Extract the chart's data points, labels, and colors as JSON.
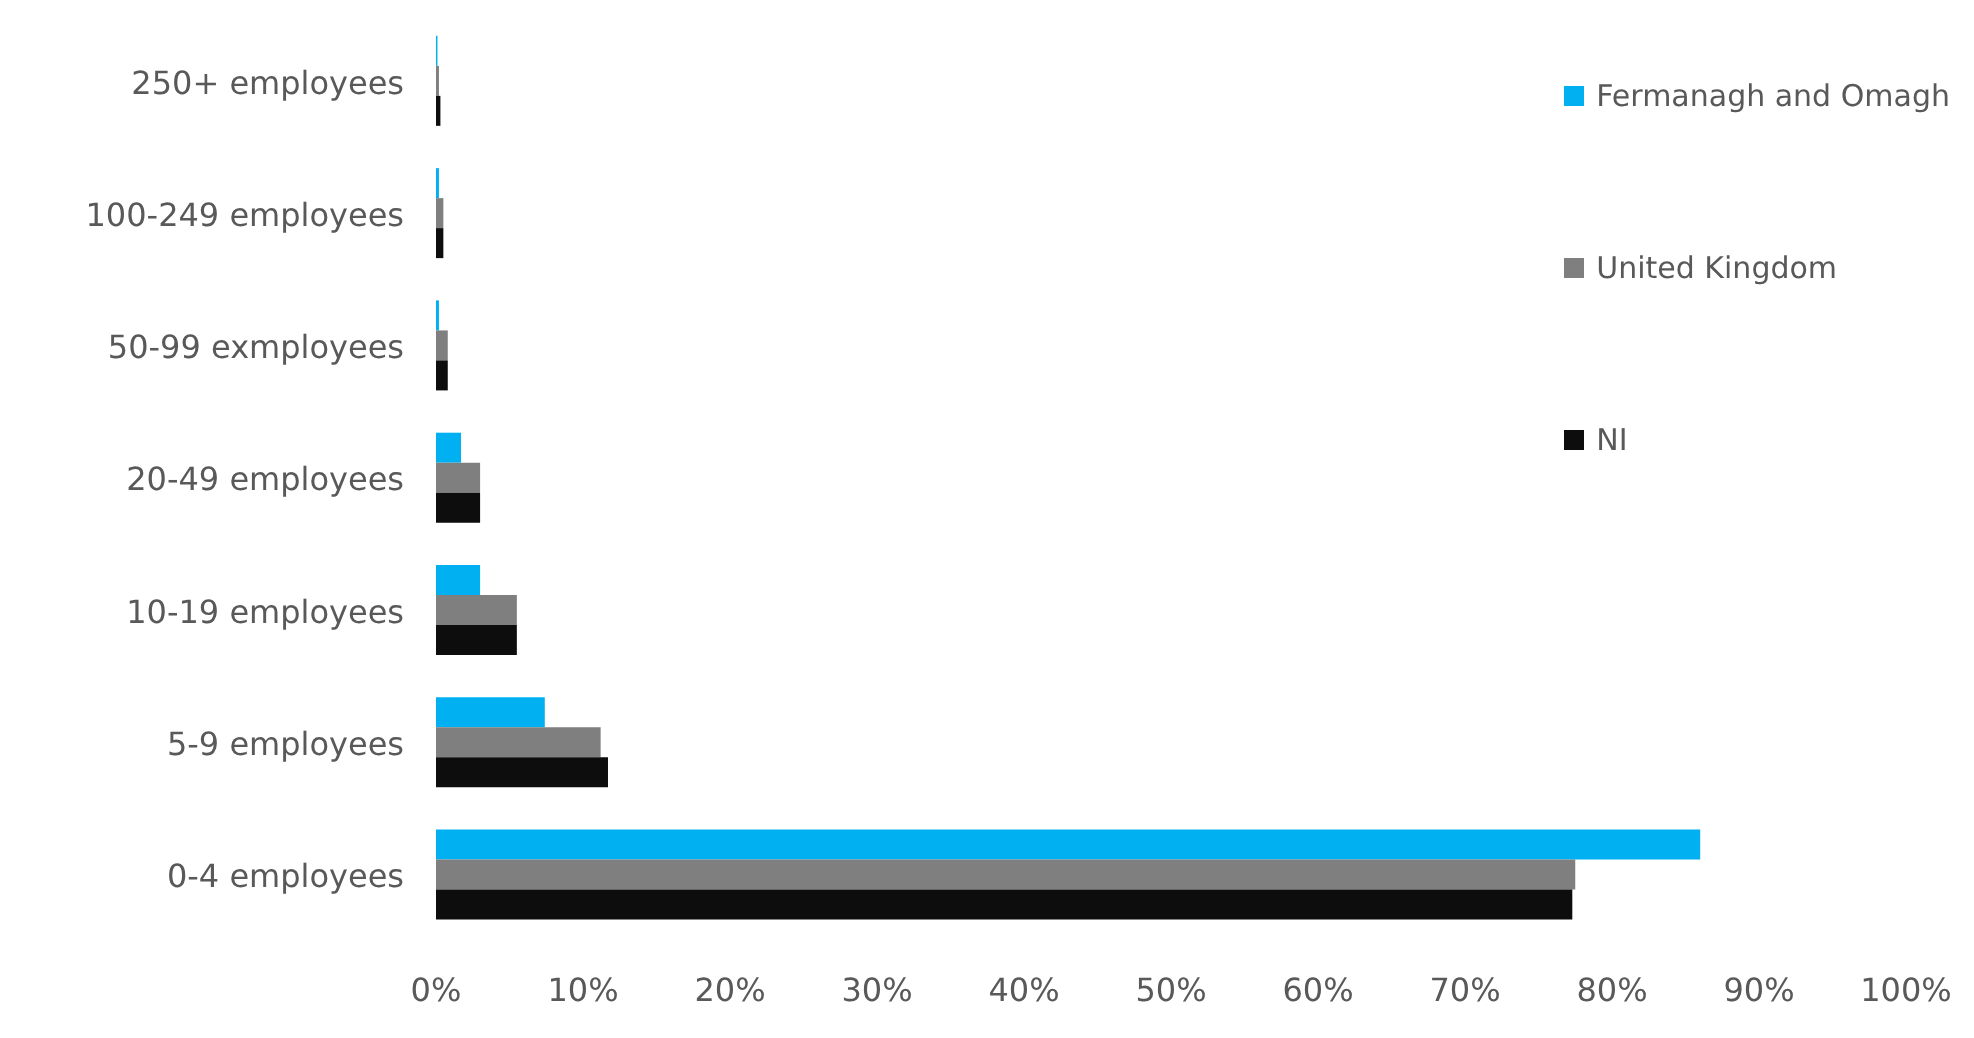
{
  "chart_data": {
    "type": "bar",
    "orientation": "horizontal",
    "categories": [
      "250+ employees",
      "100-249 employees",
      "50-99 exmployees",
      "20-49 employees",
      "10-19 employees",
      "5-9 employees",
      "0-4 employees"
    ],
    "series": [
      {
        "name": "Fermanagh and Omagh",
        "color": "#00b0f0",
        "values": [
          0.1,
          0.2,
          0.2,
          1.7,
          3.0,
          7.4,
          86.0
        ]
      },
      {
        "name": "United Kingdom",
        "color": "#7f7f7f",
        "values": [
          0.2,
          0.5,
          0.8,
          3.0,
          5.5,
          11.2,
          77.5
        ]
      },
      {
        "name": "NI",
        "color": "#0d0d0d",
        "values": [
          0.3,
          0.5,
          0.8,
          3.0,
          5.5,
          11.7,
          77.3
        ]
      }
    ],
    "xlim": [
      0,
      100
    ],
    "xticks": [
      {
        "value": 0,
        "label": "0%"
      },
      {
        "value": 10,
        "label": "10%"
      },
      {
        "value": 20,
        "label": "20%"
      },
      {
        "value": 30,
        "label": "30%"
      },
      {
        "value": 40,
        "label": "40%"
      },
      {
        "value": 50,
        "label": "50%"
      },
      {
        "value": 60,
        "label": "60%"
      },
      {
        "value": 70,
        "label": "70%"
      },
      {
        "value": 80,
        "label": "80%"
      },
      {
        "value": 90,
        "label": "90%"
      },
      {
        "value": 100,
        "label": "100%"
      }
    ],
    "grid": false,
    "legend": "top right"
  }
}
